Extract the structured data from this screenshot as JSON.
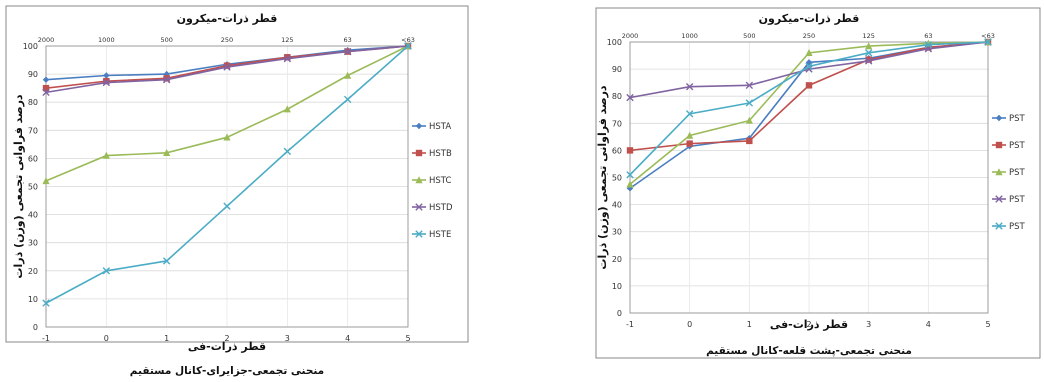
{
  "chart_data": [
    {
      "type": "line",
      "top_axis_title": "قطر ذرات-میکرون",
      "top_ticks": [
        "2000",
        "1000",
        "500",
        "250",
        "125",
        "63",
        "<63"
      ],
      "x": [
        -1,
        0,
        1,
        2,
        3,
        4,
        5
      ],
      "x_ticks": [
        "-1",
        "0",
        "1",
        "2",
        "3",
        "4",
        "5"
      ],
      "xlabel": "قطر ذرات-فی",
      "ylabel": "درصد فراوانی تجمعی (وزن) ذرات",
      "ylim": [
        0,
        100
      ],
      "y_ticks": [
        "0",
        "10",
        "20",
        "30",
        "40",
        "50",
        "60",
        "70",
        "80",
        "90",
        "100"
      ],
      "grid": true,
      "legend_position": "right",
      "caption": "منحنی تجمعی-جزایرای-کانال مستقیم",
      "series": [
        {
          "name": "HSTA",
          "color": "#4a7ec1",
          "marker": "diamond",
          "values": [
            88,
            89.5,
            90,
            93.5,
            96,
            98.5,
            100
          ]
        },
        {
          "name": "HSTB",
          "color": "#c0504d",
          "marker": "square",
          "values": [
            85,
            87.5,
            88.5,
            93,
            96,
            98,
            100
          ]
        },
        {
          "name": "HSTC",
          "color": "#9bbb59",
          "marker": "triangle",
          "values": [
            52,
            61,
            62,
            67.5,
            77.5,
            89.5,
            100
          ]
        },
        {
          "name": "HSTD",
          "color": "#8064a2",
          "marker": "x",
          "values": [
            83.5,
            87,
            88,
            92.5,
            95.5,
            98,
            100
          ]
        },
        {
          "name": "HSTE",
          "color": "#4bacc6",
          "marker": "x",
          "values": [
            8.5,
            20,
            23.5,
            43,
            62.5,
            81,
            100
          ]
        }
      ]
    },
    {
      "type": "line",
      "top_axis_title": "قطر ذرات-میکرون",
      "top_ticks": [
        "2000",
        "1000",
        "500",
        "250",
        "125",
        "63",
        "<63"
      ],
      "x": [
        -1,
        0,
        1,
        2,
        3,
        4,
        5
      ],
      "x_ticks": [
        "-1",
        "0",
        "1",
        "2",
        "3",
        "4",
        "5"
      ],
      "xlabel": "قطر ذرات-فی",
      "ylabel": "درصد فراوانی تجمعی (وزن) ذرات",
      "ylim": [
        0,
        100
      ],
      "y_ticks": [
        "0",
        "10",
        "20",
        "30",
        "40",
        "50",
        "60",
        "70",
        "80",
        "90",
        "100"
      ],
      "grid": true,
      "legend_position": "right",
      "caption": "منحنی تجمعی-پشت قلعه-کانال مستقیم",
      "series": [
        {
          "name": "PST",
          "color": "#4a7ec1",
          "marker": "diamond",
          "values": [
            46,
            61.5,
            64.5,
            92.5,
            94,
            98,
            100
          ]
        },
        {
          "name": "PST",
          "color": "#c0504d",
          "marker": "square",
          "values": [
            60,
            62.5,
            63.5,
            84,
            93.5,
            98,
            100
          ]
        },
        {
          "name": "PST",
          "color": "#9bbb59",
          "marker": "triangle",
          "values": [
            47.5,
            65.5,
            71,
            96,
            98.5,
            99.5,
            100
          ]
        },
        {
          "name": "PST",
          "color": "#8064a2",
          "marker": "x",
          "values": [
            79.5,
            83.5,
            84,
            90,
            93,
            97.5,
            100
          ]
        },
        {
          "name": "PST",
          "color": "#4bacc6",
          "marker": "x",
          "values": [
            51,
            73.5,
            77.5,
            91,
            96,
            99,
            100
          ]
        }
      ]
    }
  ]
}
